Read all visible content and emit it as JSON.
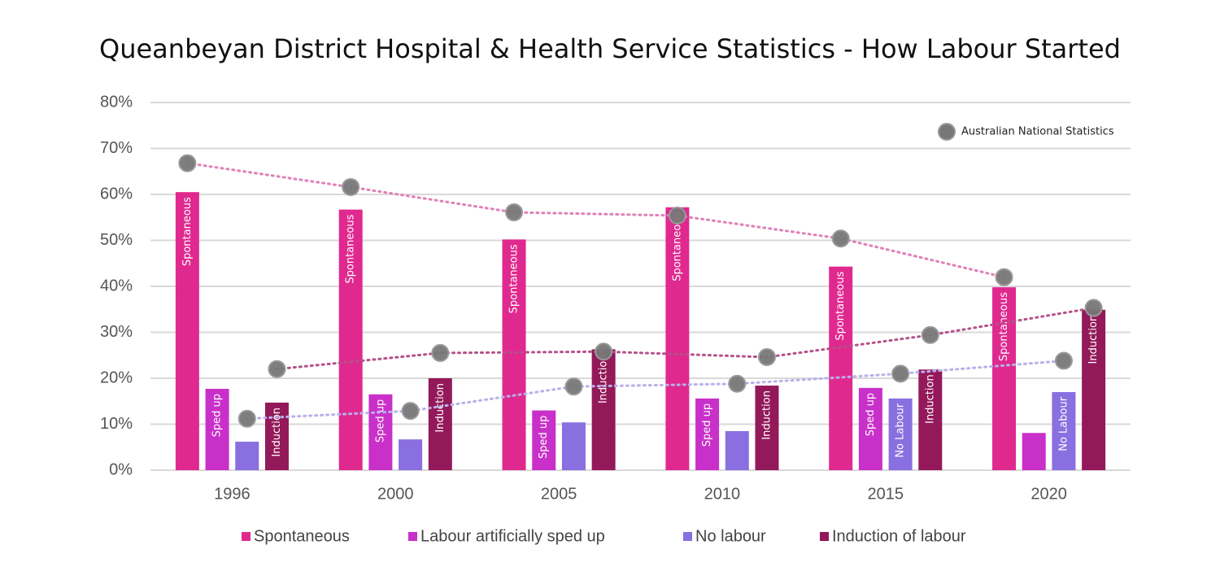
{
  "chart_data": {
    "type": "bar",
    "title": "Queanbeyan District Hospital & Health Service Statistics - How Labour Started",
    "categories": [
      "1996",
      "2000",
      "2005",
      "2010",
      "2015",
      "2020"
    ],
    "ylim": [
      0,
      80
    ],
    "yticks": [
      {
        "value": 0,
        "label": "0%"
      },
      {
        "value": 10,
        "label": "10%"
      },
      {
        "value": 20,
        "label": "20%"
      },
      {
        "value": 30,
        "label": "30%"
      },
      {
        "value": 40,
        "label": "40%"
      },
      {
        "value": 50,
        "label": "50%"
      },
      {
        "value": 60,
        "label": "60%"
      },
      {
        "value": 70,
        "label": "70%"
      },
      {
        "value": 80,
        "label": "80%"
      }
    ],
    "grid": true,
    "legend": "bottom",
    "national_name": "Australian National Statistics",
    "national_color": "#777777",
    "series": [
      {
        "name": "Spontaneous",
        "color": "#e0298f",
        "values": [
          60.5,
          56.7,
          50.2,
          57.2,
          44.3,
          39.8
        ],
        "bar_labels": [
          "Spontaneous",
          "Spontaneous",
          "Spontaneous",
          "Spontaneous",
          "Spontaneous",
          "Spontaneous"
        ],
        "national_values": [
          66.8,
          61.6,
          56.1,
          55.4,
          50.4,
          42.0
        ],
        "national_line_color": "#e07fb8"
      },
      {
        "name": "Labour artificially sped up",
        "color": "#c930c9",
        "values": [
          17.7,
          16.5,
          13.0,
          15.6,
          17.9,
          8.1
        ],
        "bar_labels": [
          "Sped up",
          "Sped up",
          "Sped up",
          "Sped up",
          "Sped up",
          null
        ]
      },
      {
        "name": "No labour",
        "color": "#8a6fe0",
        "values": [
          6.2,
          6.7,
          10.4,
          8.5,
          15.6,
          17.0
        ],
        "bar_labels": [
          null,
          null,
          null,
          null,
          "No Labour",
          "No Labour"
        ],
        "national_values": [
          11.2,
          12.9,
          18.2,
          18.8,
          21.0,
          23.8
        ],
        "national_line_color": "#b9b0ea"
      },
      {
        "name": "Induction of labour",
        "color": "#93195a",
        "values": [
          14.7,
          20.0,
          26.3,
          18.4,
          21.9,
          34.9
        ],
        "bar_labels": [
          "Induction",
          "Induction",
          "Induction",
          "Induction",
          "Induction",
          "Induction"
        ],
        "national_values": [
          22.0,
          25.5,
          25.8,
          24.6,
          29.4,
          35.3
        ],
        "national_line_color": "#b5508a"
      }
    ]
  }
}
